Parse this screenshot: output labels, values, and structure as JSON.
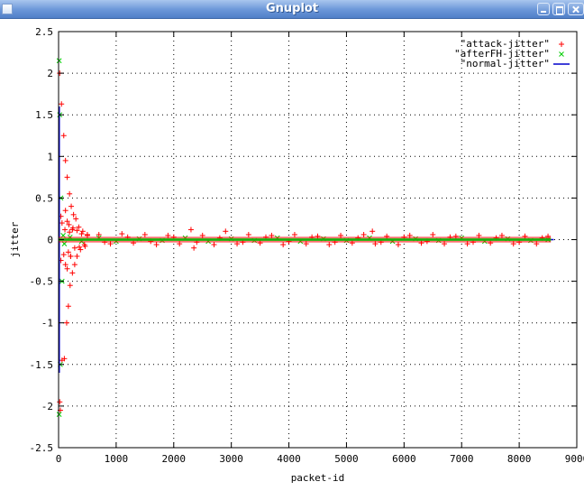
{
  "window": {
    "title": "Gnuplot"
  },
  "icons": {
    "app": "app-icon",
    "minimize": "minimize-icon",
    "maximize": "maximize-icon",
    "close": "close-icon"
  },
  "chart_data": {
    "type": "scatter",
    "title": "",
    "xlabel": "packet-id",
    "ylabel": "jitter",
    "xlim": [
      0,
      9000
    ],
    "ylim": [
      -2.5,
      2.5
    ],
    "xticks": [
      "0",
      "1000",
      "2000",
      "3000",
      "4000",
      "5000",
      "6000",
      "7000",
      "8000",
      "9000"
    ],
    "yticks": [
      "2.5",
      "2",
      "1.5",
      "1",
      "0.5",
      "0",
      "-0.5",
      "-1",
      "-1.5",
      "-2",
      "-2.5"
    ],
    "grid": true,
    "legend_position": "top-right",
    "series": [
      {
        "name": "\"attack-jitter\"",
        "marker": "+",
        "color": "#ff0000",
        "x": [
          20,
          20,
          30,
          50,
          60,
          90,
          100,
          120,
          140,
          150,
          170,
          190,
          200,
          220,
          240,
          260,
          280,
          300,
          320,
          350,
          380,
          420,
          460,
          500,
          40,
          40,
          60,
          90,
          110,
          120,
          150,
          170,
          190,
          210,
          250,
          280,
          320,
          360,
          400,
          450,
          500,
          120,
          150,
          180,
          210,
          240,
          700,
          900,
          1100,
          1300,
          1500,
          1700,
          1900,
          2100,
          2300,
          2350,
          2500,
          2700,
          2900,
          3100,
          3300,
          3500,
          3700,
          3900,
          4100,
          4300,
          4500,
          4700,
          4900,
          5100,
          5300,
          5450,
          5500,
          5700,
          5900,
          6100,
          6300,
          6500,
          6700,
          6900,
          7100,
          7300,
          7500,
          7700,
          7900,
          8100,
          8300,
          8500,
          800,
          1200,
          1600,
          2000,
          2400,
          2800,
          3200,
          3600,
          4000,
          4400,
          4800,
          5200,
          5600,
          6000,
          6400,
          6800,
          7200,
          7600,
          8000,
          8400
        ],
        "y": [
          2.0,
          -1.95,
          -2.05,
          1.63,
          -1.45,
          1.25,
          -1.43,
          0.95,
          -1.0,
          0.75,
          -0.8,
          0.55,
          -0.55,
          0.4,
          -0.4,
          0.3,
          -0.3,
          0.25,
          -0.2,
          0.15,
          -0.12,
          0.1,
          -0.08,
          0.06,
          0.28,
          -0.25,
          0.2,
          -0.18,
          0.12,
          -0.3,
          0.22,
          -0.15,
          0.09,
          -0.2,
          0.14,
          -0.1,
          0.11,
          -0.09,
          0.07,
          -0.06,
          0.05,
          0.35,
          -0.35,
          0.18,
          -0.2,
          0.12,
          0.06,
          -0.05,
          0.07,
          -0.04,
          0.06,
          -0.06,
          0.05,
          -0.05,
          0.12,
          -0.1,
          0.05,
          -0.06,
          0.1,
          -0.05,
          0.06,
          -0.04,
          0.05,
          -0.06,
          0.06,
          -0.05,
          0.04,
          -0.06,
          0.05,
          -0.04,
          0.06,
          0.1,
          -0.05,
          0.04,
          -0.06,
          0.05,
          -0.04,
          0.06,
          -0.05,
          0.04,
          -0.05,
          0.05,
          -0.04,
          0.05,
          -0.05,
          0.04,
          -0.05,
          0.04,
          -0.03,
          0.03,
          -0.02,
          0.03,
          -0.03,
          0.02,
          -0.03,
          0.03,
          -0.02,
          0.03,
          -0.03,
          0.02,
          -0.03,
          0.03,
          -0.02,
          0.03,
          -0.03,
          0.02,
          -0.03,
          0.02
        ]
      },
      {
        "name": "\"afterFH-jitter\"",
        "marker": "x",
        "color": "#00cc00",
        "x": [
          10,
          10,
          20,
          30,
          40,
          60,
          80,
          100,
          200,
          400,
          700,
          1000,
          1400,
          1800,
          2200,
          2600,
          3000,
          3400,
          3800,
          4200,
          4600,
          5000,
          5400,
          5800,
          6200,
          6600,
          7000,
          7400,
          7800,
          8200,
          8500
        ],
        "y": [
          2.15,
          -2.1,
          1.5,
          -1.5,
          0.5,
          -0.5,
          0.05,
          -0.05,
          0.03,
          -0.02,
          0.02,
          -0.02,
          0.01,
          -0.01,
          0.02,
          -0.02,
          0.01,
          -0.01,
          0.02,
          -0.02,
          0.01,
          -0.01,
          0.02,
          -0.02,
          0.01,
          -0.01,
          0.02,
          -0.02,
          0.01,
          -0.01,
          0.0
        ]
      },
      {
        "name": "\"normal-jitter\"",
        "marker": "line",
        "color": "#0000cc",
        "x": [
          0,
          8600
        ],
        "y": [
          0,
          0
        ],
        "spike": {
          "x": 8,
          "ymin": -1.6,
          "ymax": 1.6
        }
      }
    ]
  }
}
